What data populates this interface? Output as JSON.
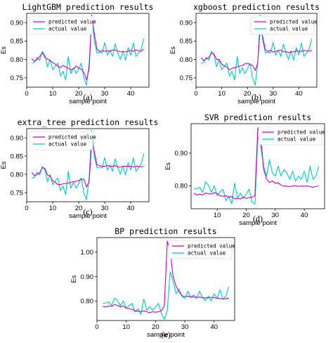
{
  "chart_data": [
    {
      "type": "line",
      "title": "LightGBM prediction results",
      "xlabel": "sample point",
      "ylabel": "Es",
      "caption": "(a)",
      "xlim": [
        0,
        47
      ],
      "ylim": [
        0.725,
        0.925
      ],
      "xticks": [
        0,
        10,
        20,
        30,
        40
      ],
      "yticks": [
        0.75,
        0.8,
        0.85,
        0.9
      ],
      "legend": "top-left",
      "series": [
        {
          "name": "predicted value",
          "color": "#cc00cc",
          "x": [
            2,
            3,
            4,
            5,
            6,
            7,
            8,
            9,
            10,
            11,
            12,
            13,
            14,
            15,
            16,
            17,
            18,
            19,
            20,
            21,
            22,
            23,
            24,
            25,
            26,
            27,
            28,
            29,
            30,
            31,
            32,
            33,
            34,
            35,
            36,
            37,
            38,
            39,
            40,
            41,
            42,
            43,
            44,
            45
          ],
          "values": [
            0.802,
            0.795,
            0.8,
            0.808,
            0.818,
            0.806,
            0.801,
            0.797,
            0.792,
            0.787,
            0.782,
            0.778,
            0.784,
            0.78,
            0.776,
            0.772,
            0.775,
            0.782,
            0.776,
            0.774,
            0.765,
            0.745,
            0.775,
            0.92,
            0.87,
            0.828,
            0.822,
            0.824,
            0.822,
            0.824,
            0.822,
            0.826,
            0.825,
            0.823,
            0.821,
            0.822,
            0.82,
            0.823,
            0.825,
            0.822,
            0.826,
            0.824,
            0.822,
            0.828
          ]
        },
        {
          "name": "actual value",
          "color": "#00c8c8",
          "x": [
            2,
            3,
            4,
            5,
            6,
            7,
            8,
            9,
            10,
            11,
            12,
            13,
            14,
            15,
            16,
            17,
            18,
            19,
            20,
            21,
            22,
            23,
            24,
            25,
            26,
            27,
            28,
            29,
            30,
            31,
            32,
            33,
            34,
            35,
            36,
            37,
            38,
            39,
            40,
            41,
            42,
            43,
            44,
            45
          ],
          "values": [
            0.79,
            0.792,
            0.806,
            0.798,
            0.822,
            0.812,
            0.78,
            0.8,
            0.772,
            0.782,
            0.79,
            0.755,
            0.768,
            0.744,
            0.808,
            0.762,
            0.778,
            0.762,
            0.775,
            0.79,
            0.75,
            0.73,
            0.79,
            0.92,
            0.85,
            0.818,
            0.82,
            0.818,
            0.846,
            0.812,
            0.825,
            0.808,
            0.842,
            0.818,
            0.8,
            0.822,
            0.798,
            0.832,
            0.812,
            0.845,
            0.808,
            0.818,
            0.828,
            0.856
          ]
        }
      ]
    },
    {
      "type": "line",
      "title": "xgboost prediction results",
      "xlabel": "sample point",
      "ylabel": "Es",
      "caption": "(b)",
      "xlim": [
        0,
        47
      ],
      "ylim": [
        0.725,
        0.925
      ],
      "xticks": [
        0,
        10,
        20,
        30,
        40
      ],
      "yticks": [
        0.75,
        0.8,
        0.85,
        0.9
      ],
      "legend": "top-right",
      "series": [
        {
          "name": "predicted value",
          "color": "#cc00cc",
          "x": [
            2,
            3,
            4,
            5,
            6,
            7,
            8,
            9,
            10,
            11,
            12,
            13,
            14,
            15,
            16,
            17,
            18,
            19,
            20,
            21,
            22,
            23,
            24,
            25,
            26,
            27,
            28,
            29,
            30,
            31,
            32,
            33,
            34,
            35,
            36,
            37,
            38,
            39,
            40,
            41,
            42,
            43,
            44,
            45
          ],
          "values": [
            0.805,
            0.797,
            0.802,
            0.805,
            0.818,
            0.815,
            0.8,
            0.8,
            0.788,
            0.782,
            0.78,
            0.772,
            0.776,
            0.778,
            0.78,
            0.782,
            0.784,
            0.788,
            0.79,
            0.786,
            0.784,
            0.77,
            0.79,
            0.89,
            0.86,
            0.826,
            0.822,
            0.825,
            0.82,
            0.822,
            0.824,
            0.826,
            0.82,
            0.822,
            0.818,
            0.822,
            0.82,
            0.824,
            0.822,
            0.822,
            0.825,
            0.824,
            0.822,
            0.825
          ]
        },
        {
          "name": "actual value",
          "color": "#00c8c8",
          "x": [
            2,
            3,
            4,
            5,
            6,
            7,
            8,
            9,
            10,
            11,
            12,
            13,
            14,
            15,
            16,
            17,
            18,
            19,
            20,
            21,
            22,
            23,
            24,
            25,
            26,
            27,
            28,
            29,
            30,
            31,
            32,
            33,
            34,
            35,
            36,
            37,
            38,
            39,
            40,
            41,
            42,
            43,
            44,
            45
          ],
          "values": [
            0.79,
            0.792,
            0.806,
            0.798,
            0.822,
            0.812,
            0.78,
            0.8,
            0.772,
            0.782,
            0.79,
            0.755,
            0.768,
            0.744,
            0.808,
            0.762,
            0.778,
            0.762,
            0.775,
            0.79,
            0.75,
            0.73,
            0.79,
            0.92,
            0.85,
            0.818,
            0.82,
            0.818,
            0.846,
            0.812,
            0.825,
            0.808,
            0.842,
            0.818,
            0.8,
            0.822,
            0.798,
            0.832,
            0.812,
            0.845,
            0.808,
            0.818,
            0.828,
            0.856
          ]
        }
      ]
    },
    {
      "type": "line",
      "title": "extra_tree prediction results",
      "xlabel": "sample point",
      "ylabel": "Es",
      "caption": "(c)",
      "xlim": [
        0,
        47
      ],
      "ylim": [
        0.725,
        0.925
      ],
      "xticks": [
        0,
        10,
        20,
        30,
        40
      ],
      "yticks": [
        0.75,
        0.8,
        0.85,
        0.9
      ],
      "legend": "top-left",
      "series": [
        {
          "name": "predicted value",
          "color": "#cc00cc",
          "x": [
            2,
            3,
            4,
            5,
            6,
            7,
            8,
            9,
            10,
            11,
            12,
            13,
            14,
            15,
            16,
            17,
            18,
            19,
            20,
            21,
            22,
            23,
            24,
            25,
            26,
            27,
            28,
            29,
            30,
            31,
            32,
            33,
            34,
            35,
            36,
            37,
            38,
            39,
            40,
            41,
            42,
            43,
            44,
            45
          ],
          "values": [
            0.805,
            0.796,
            0.8,
            0.804,
            0.818,
            0.816,
            0.798,
            0.795,
            0.782,
            0.778,
            0.772,
            0.772,
            0.774,
            0.775,
            0.776,
            0.778,
            0.78,
            0.781,
            0.783,
            0.786,
            0.787,
            0.765,
            0.78,
            0.888,
            0.862,
            0.826,
            0.824,
            0.822,
            0.822,
            0.824,
            0.822,
            0.822,
            0.824,
            0.82,
            0.82,
            0.822,
            0.822,
            0.822,
            0.822,
            0.82,
            0.822,
            0.822,
            0.82,
            0.822
          ]
        },
        {
          "name": "actual value",
          "color": "#00c8c8",
          "x": [
            2,
            3,
            4,
            5,
            6,
            7,
            8,
            9,
            10,
            11,
            12,
            13,
            14,
            15,
            16,
            17,
            18,
            19,
            20,
            21,
            22,
            23,
            24,
            25,
            26,
            27,
            28,
            29,
            30,
            31,
            32,
            33,
            34,
            35,
            36,
            37,
            38,
            39,
            40,
            41,
            42,
            43,
            44,
            45
          ],
          "values": [
            0.79,
            0.792,
            0.806,
            0.798,
            0.822,
            0.812,
            0.78,
            0.8,
            0.772,
            0.782,
            0.79,
            0.755,
            0.768,
            0.744,
            0.808,
            0.762,
            0.778,
            0.762,
            0.775,
            0.79,
            0.75,
            0.73,
            0.79,
            0.92,
            0.85,
            0.818,
            0.82,
            0.818,
            0.846,
            0.812,
            0.825,
            0.808,
            0.842,
            0.818,
            0.8,
            0.822,
            0.798,
            0.832,
            0.812,
            0.845,
            0.808,
            0.818,
            0.828,
            0.856
          ]
        }
      ]
    },
    {
      "type": "line",
      "title": "SVR prediction results",
      "xlabel": "sample point",
      "ylabel": "Es",
      "caption": "(d)",
      "xlim": [
        1,
        47
      ],
      "ylim": [
        0.73,
        0.99
      ],
      "xticks": [
        0,
        10,
        20,
        30,
        40
      ],
      "yticks": [
        0.8,
        0.9
      ],
      "legend": "top-right",
      "series": [
        {
          "name": "predicted value",
          "color": "#cc00cc",
          "x": [
            2,
            3,
            4,
            5,
            6,
            7,
            8,
            9,
            10,
            11,
            12,
            13,
            14,
            15,
            16,
            17,
            18,
            19,
            20,
            21,
            22,
            23,
            24,
            25,
            26,
            27,
            28,
            29,
            30,
            31,
            32,
            33,
            34,
            35,
            36,
            37,
            38,
            39,
            40,
            41,
            42,
            43,
            44,
            45
          ],
          "values": [
            0.778,
            0.772,
            0.775,
            0.772,
            0.778,
            0.776,
            0.775,
            0.78,
            0.776,
            0.77,
            0.768,
            0.77,
            0.765,
            0.768,
            0.76,
            0.762,
            0.76,
            0.765,
            0.762,
            0.764,
            0.765,
            0.77,
            0.978,
            0.95,
            0.85,
            0.822,
            0.81,
            0.815,
            0.808,
            0.81,
            0.802,
            0.8,
            0.799,
            0.798,
            0.8,
            0.801,
            0.798,
            0.8,
            0.799,
            0.8,
            0.798,
            0.796,
            0.798,
            0.8
          ]
        },
        {
          "name": "actual value",
          "color": "#00c8c8",
          "x": [
            2,
            3,
            4,
            5,
            6,
            7,
            8,
            9,
            10,
            11,
            12,
            13,
            14,
            15,
            16,
            17,
            18,
            19,
            20,
            21,
            22,
            23,
            24,
            25,
            26,
            27,
            28,
            29,
            30,
            31,
            32,
            33,
            34,
            35,
            36,
            37,
            38,
            39,
            40,
            41,
            42,
            43,
            44,
            45
          ],
          "values": [
            0.79,
            0.792,
            0.795,
            0.78,
            0.812,
            0.802,
            0.78,
            0.8,
            0.77,
            0.782,
            0.79,
            0.755,
            0.768,
            0.745,
            0.808,
            0.762,
            0.778,
            0.762,
            0.775,
            0.79,
            0.75,
            0.745,
            0.95,
            0.92,
            0.86,
            0.83,
            0.88,
            0.84,
            0.83,
            0.86,
            0.83,
            0.85,
            0.84,
            0.82,
            0.845,
            0.815,
            0.83,
            0.82,
            0.845,
            0.81,
            0.86,
            0.82,
            0.83,
            0.86
          ]
        }
      ]
    },
    {
      "type": "line",
      "title": "BP prediction results",
      "xlabel": "sample point",
      "ylabel": "Es",
      "caption": "(e)",
      "xlim": [
        0,
        47
      ],
      "ylim": [
        0.72,
        1.06
      ],
      "xticks": [
        0,
        10,
        20,
        30,
        40
      ],
      "yticks": [
        0.8,
        0.9,
        1.0
      ],
      "legend": "top-right",
      "series": [
        {
          "name": "predicted value",
          "color": "#cc00cc",
          "x": [
            2,
            3,
            4,
            5,
            6,
            7,
            8,
            9,
            10,
            11,
            12,
            13,
            14,
            15,
            16,
            17,
            18,
            19,
            20,
            21,
            22,
            23,
            24,
            25,
            26,
            27,
            28,
            29,
            30,
            31,
            32,
            33,
            34,
            35,
            36,
            37,
            38,
            39,
            40,
            41,
            42,
            43,
            44,
            45
          ],
          "values": [
            0.778,
            0.776,
            0.78,
            0.778,
            0.786,
            0.782,
            0.776,
            0.78,
            0.77,
            0.768,
            0.766,
            0.76,
            0.758,
            0.756,
            0.76,
            0.756,
            0.752,
            0.756,
            0.754,
            0.756,
            0.76,
            0.78,
            1.045,
            1.0,
            0.9,
            0.86,
            0.838,
            0.822,
            0.818,
            0.82,
            0.816,
            0.818,
            0.815,
            0.816,
            0.814,
            0.812,
            0.814,
            0.815,
            0.813,
            0.812,
            0.81,
            0.808,
            0.81,
            0.812
          ]
        },
        {
          "name": "actual value",
          "color": "#00c8c8",
          "x": [
            2,
            3,
            4,
            5,
            6,
            7,
            8,
            9,
            10,
            11,
            12,
            13,
            14,
            15,
            16,
            17,
            18,
            19,
            20,
            21,
            22,
            23,
            24,
            25,
            26,
            27,
            28,
            29,
            30,
            31,
            32,
            33,
            34,
            35,
            36,
            37,
            38,
            39,
            40,
            41,
            42,
            43,
            44,
            45
          ],
          "values": [
            0.79,
            0.792,
            0.796,
            0.782,
            0.812,
            0.802,
            0.78,
            0.8,
            0.77,
            0.782,
            0.79,
            0.755,
            0.768,
            0.745,
            0.808,
            0.762,
            0.778,
            0.762,
            0.775,
            0.79,
            0.75,
            0.725,
            0.76,
            0.92,
            0.88,
            0.83,
            0.85,
            0.82,
            0.81,
            0.84,
            0.815,
            0.825,
            0.81,
            0.84,
            0.815,
            0.8,
            0.82,
            0.8,
            0.83,
            0.81,
            0.845,
            0.808,
            0.82,
            0.858
          ]
        }
      ]
    }
  ]
}
